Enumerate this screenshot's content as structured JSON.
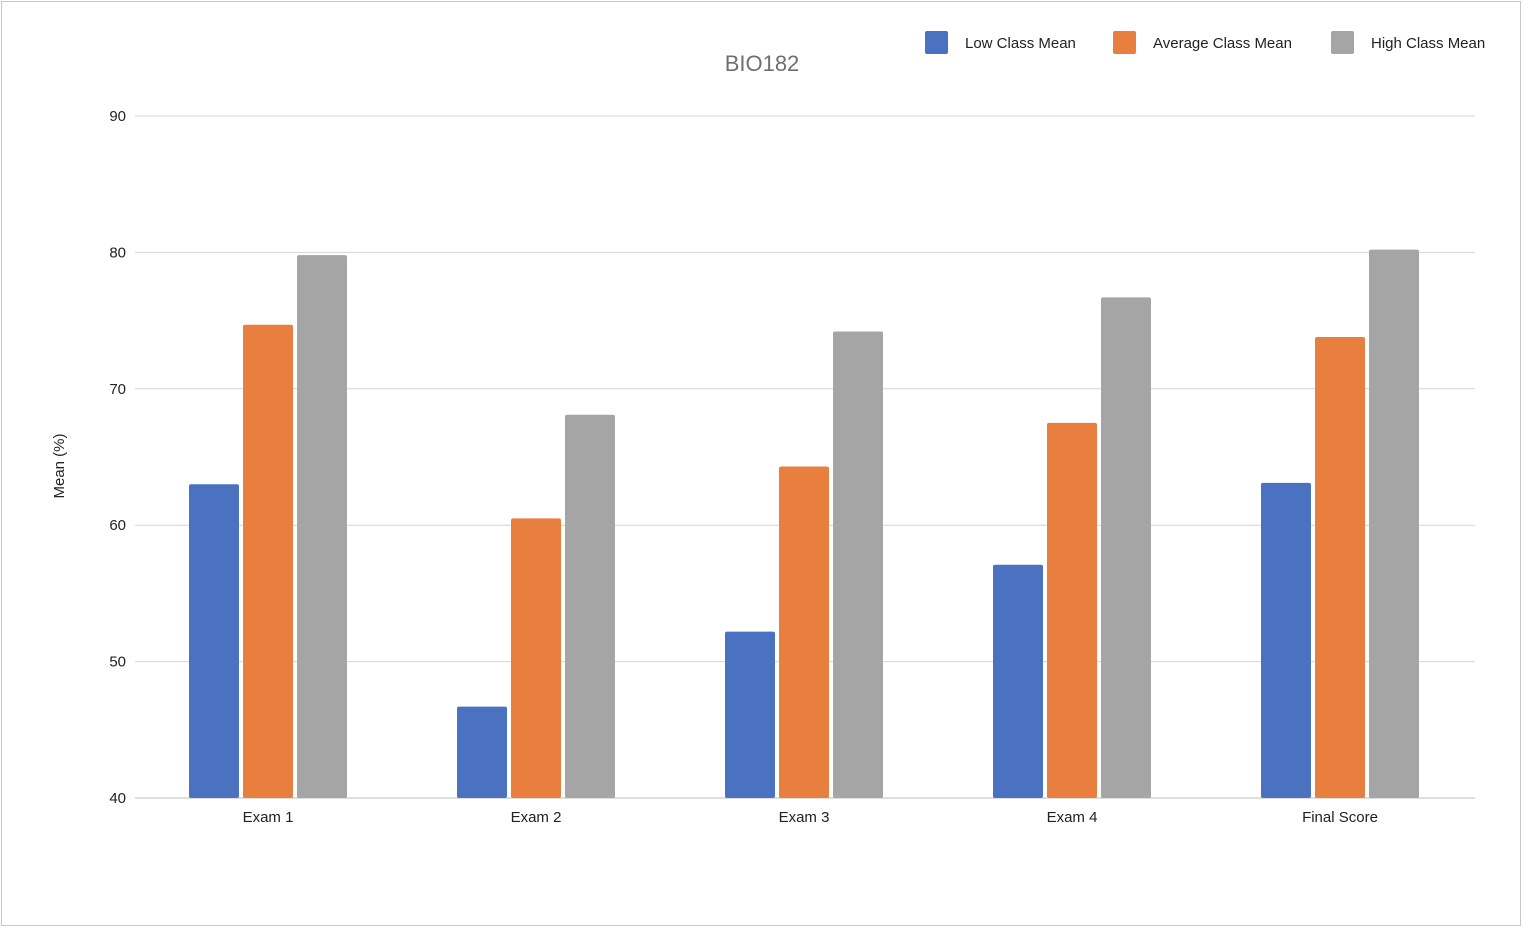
{
  "chart_data": {
    "type": "bar",
    "title": "BIO182",
    "xlabel": "",
    "ylabel": "Mean (%)",
    "ylim": [
      40,
      90
    ],
    "yticks": [
      40,
      50,
      60,
      70,
      80,
      90
    ],
    "grid": true,
    "legend_position": "top-right",
    "categories": [
      "Exam 1",
      "Exam 2",
      "Exam 3",
      "Exam 4",
      "Final Score"
    ],
    "series": [
      {
        "name": "Low Class Mean",
        "color": "#4a72c1",
        "values": [
          63.0,
          46.7,
          52.2,
          57.1,
          63.1
        ]
      },
      {
        "name": "Average Class Mean",
        "color": "#e97f3f",
        "values": [
          74.7,
          60.5,
          64.3,
          67.5,
          73.8
        ]
      },
      {
        "name": "High Class Mean",
        "color": "#a5a5a5",
        "values": [
          79.8,
          68.1,
          74.2,
          76.7,
          80.2
        ]
      }
    ]
  }
}
